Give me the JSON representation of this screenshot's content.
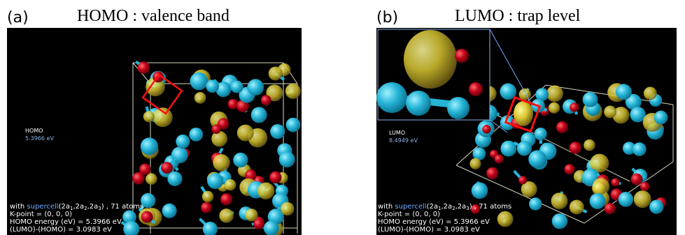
{
  "panels": [
    {
      "label": "(a)",
      "title": "HOMO : valence band",
      "orbital": "HOMO",
      "energy": "5.3966 eV",
      "info": {
        "prefix": "with ",
        "link": "supercell",
        "cell": [
          "(2a",
          "1",
          ",2a",
          "2",
          ",2a",
          "3",
          ")"
        ],
        "suffix": " , 71 atoms",
        "lines": [
          "K-point = (0, 0, 0)",
          "HOMO energy (eV) = 5.3966 eV",
          "(LUMO)-(HOMO) = 3.0983 eV"
        ]
      }
    },
    {
      "label": "(b)",
      "title": "LUMO : trap level",
      "orbital": "LUMO",
      "energy": "8.4949 eV",
      "info": {
        "prefix": "with ",
        "link": "supercell",
        "cell": [
          "(2a",
          "1",
          ",2a",
          "2",
          ",2a",
          "3",
          ")"
        ],
        "suffix": " , 71 atoms",
        "lines": [
          "K-point = (0, 0, 0)",
          "HOMO energy (eV) = 5.3966 eV",
          "(LUMO)-(HOMO) = 3.0983 eV"
        ]
      }
    }
  ]
}
